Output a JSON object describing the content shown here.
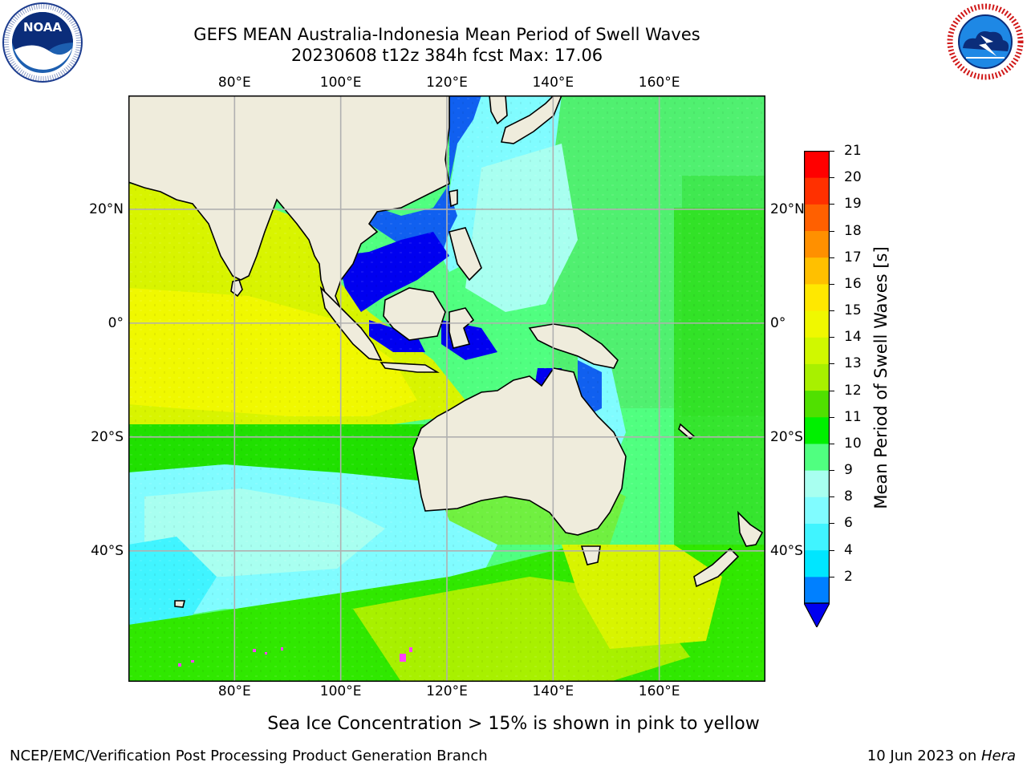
{
  "title": {
    "line1": "GEFS MEAN Australia-Indonesia Mean Period of Swell Waves",
    "line2": "20230608 t12z 384h fcst   Max: 17.06"
  },
  "logos": {
    "left": {
      "icon": "noaa-logo",
      "text": "NOAA",
      "ring_text": "NATIONAL OCEANIC AND ATMOSPHERIC ADMINISTRATION · U.S. DEPARTMENT OF COMMERCE"
    },
    "right": {
      "icon": "nws-logo",
      "ring_text": "NATIONAL WEATHER SERVICE"
    }
  },
  "map": {
    "lon_ticks": [
      "80°E",
      "100°E",
      "120°E",
      "140°E",
      "160°E"
    ],
    "lat_ticks": [
      "20°N",
      "0°",
      "20°S",
      "40°S"
    ],
    "lon_range": [
      60,
      180
    ],
    "lat_range": [
      -63,
      40
    ],
    "grid": true,
    "colors": {
      "land": "#efecdc",
      "frame": "#000000",
      "grid": "#b0b0b0"
    }
  },
  "colorbar": {
    "label": "Mean Period of Swell Waves [s]",
    "ticks": [
      "21",
      "20",
      "19",
      "18",
      "17",
      "16",
      "15",
      "14",
      "13",
      "12",
      "11",
      "10",
      "9",
      "8",
      "6",
      "4",
      "2"
    ],
    "colors": [
      "#0000f0",
      "#0080ff",
      "#00e6ff",
      "#40f4ff",
      "#80fcff",
      "#a8fff0",
      "#50ff80",
      "#00f000",
      "#50e000",
      "#a8f000",
      "#d0f800",
      "#f0f800",
      "#ffe800",
      "#ffc000",
      "#ff9000",
      "#ff6000",
      "#ff3000",
      "#ff0000"
    ],
    "extend_min_color": "#0000f0"
  },
  "footer": {
    "note": "Sea Ice Concentration > 15% is shown in pink to yellow",
    "left": "NCEP/EMC/Verification Post Processing Product Generation Branch",
    "right_prefix": "10 Jun 2023 on ",
    "right_host": "Hera"
  }
}
